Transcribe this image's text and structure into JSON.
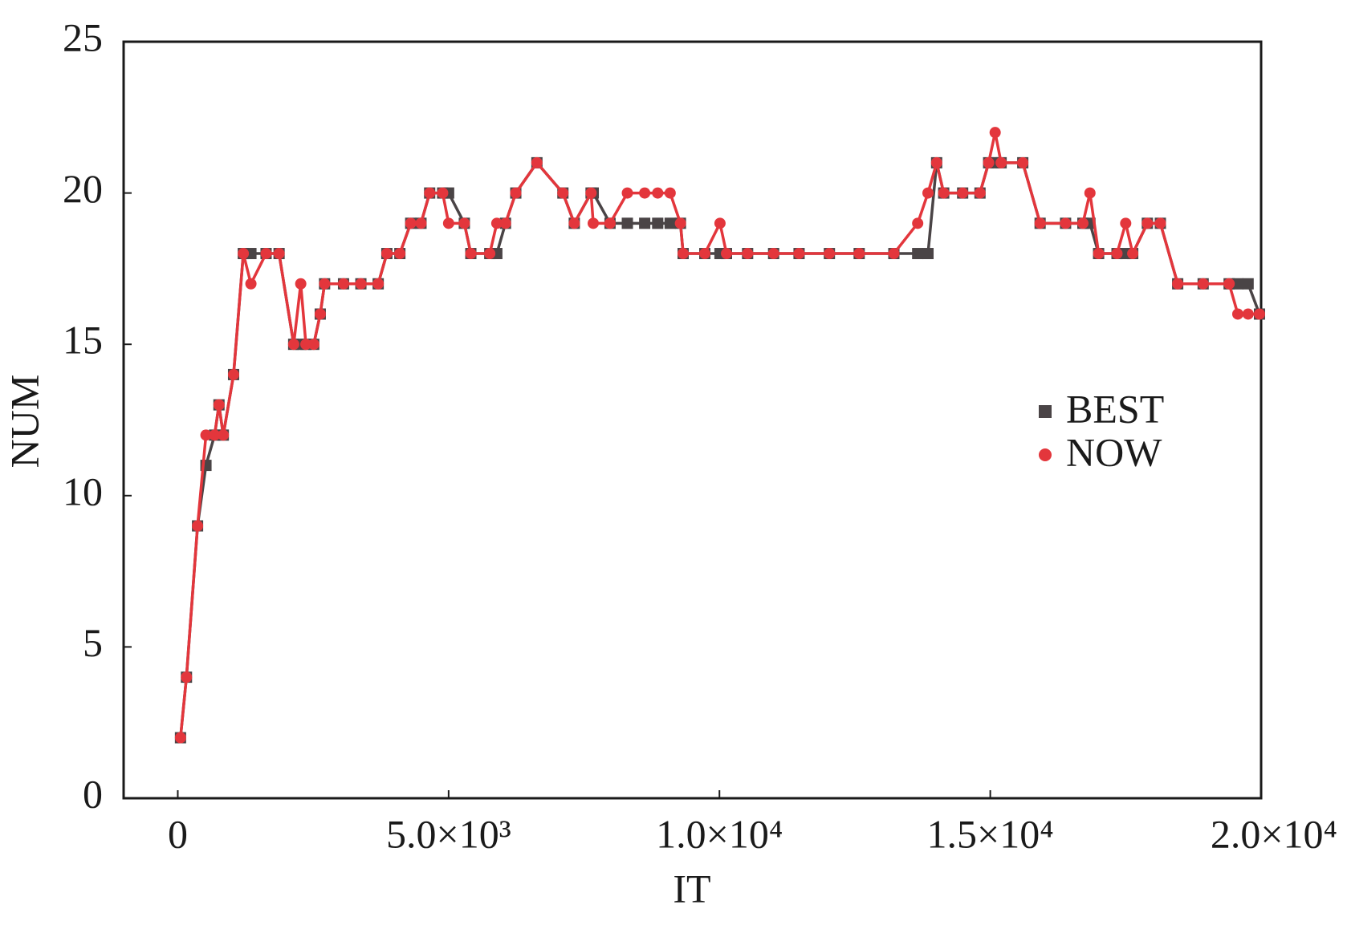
{
  "chart_data": {
    "type": "line",
    "x_label": "IT",
    "y_label": "NUM",
    "x": [
      50,
      160,
      365,
      520,
      680,
      760,
      840,
      1030,
      1210,
      1350,
      1630,
      1870,
      2140,
      2270,
      2365,
      2510,
      2630,
      2710,
      3060,
      3380,
      3700,
      3860,
      4100,
      4300,
      4490,
      4650,
      4890,
      5000,
      5290,
      5410,
      5760,
      5890,
      6050,
      6240,
      6630,
      7110,
      7320,
      7630,
      7670,
      7980,
      8300,
      8620,
      8860,
      9090,
      9280,
      9330,
      9730,
      10010,
      10130,
      10520,
      11000,
      11470,
      12030,
      12580,
      13220,
      13660,
      13850,
      14010,
      14140,
      14490,
      14810,
      14970,
      15090,
      15200,
      15600,
      15920,
      16390,
      16710,
      16840,
      17000,
      17340,
      17500,
      17630,
      17900,
      18140,
      18460,
      18930,
      19410,
      19570,
      19760,
      19970
    ],
    "series": [
      {
        "name": "BEST",
        "color": "#4a4446",
        "marker": "square",
        "values": [
          2,
          4,
          9,
          11,
          12,
          13,
          12,
          14,
          18,
          18,
          18,
          18,
          15,
          15,
          15,
          15,
          16,
          17,
          17,
          17,
          17,
          18,
          18,
          19,
          19,
          20,
          20,
          20,
          19,
          18,
          18,
          18,
          19,
          20,
          21,
          20,
          19,
          20,
          20,
          19,
          19,
          19,
          19,
          19,
          19,
          18,
          18,
          18,
          18,
          18,
          18,
          18,
          18,
          18,
          18,
          18,
          18,
          21,
          20,
          20,
          20,
          21,
          21,
          21,
          21,
          19,
          19,
          19,
          19,
          18,
          18,
          18,
          18,
          19,
          19,
          17,
          17,
          17,
          17,
          17,
          16
        ]
      },
      {
        "name": "NOW",
        "color": "#e3363c",
        "marker": "circle",
        "values": [
          2,
          4,
          9,
          12,
          12,
          13,
          12,
          14,
          18,
          17,
          18,
          18,
          15,
          17,
          15,
          15,
          16,
          17,
          17,
          17,
          17,
          18,
          18,
          19,
          19,
          20,
          20,
          19,
          19,
          18,
          18,
          19,
          19,
          20,
          21,
          20,
          19,
          20,
          19,
          19,
          20,
          20,
          20,
          20,
          19,
          18,
          18,
          19,
          18,
          18,
          18,
          18,
          18,
          18,
          18,
          19,
          20,
          21,
          20,
          20,
          20,
          21,
          22,
          21,
          21,
          19,
          19,
          19,
          20,
          18,
          18,
          19,
          18,
          19,
          19,
          17,
          17,
          17,
          16,
          16,
          16
        ]
      }
    ],
    "xlim": [
      -1000,
      20000
    ],
    "xticks": [
      0,
      {
        "value": 5000,
        "label": "5.0×10³"
      },
      {
        "value": 10000,
        "label": "1.0×10⁴"
      },
      {
        "value": 15000,
        "label": "1.5×10⁴"
      },
      {
        "value": 20000,
        "label": "2.0×10⁴"
      }
    ],
    "ylim": [
      0,
      25
    ],
    "yticks": [
      0,
      5,
      10,
      15,
      20,
      25
    ],
    "legend": "right"
  }
}
